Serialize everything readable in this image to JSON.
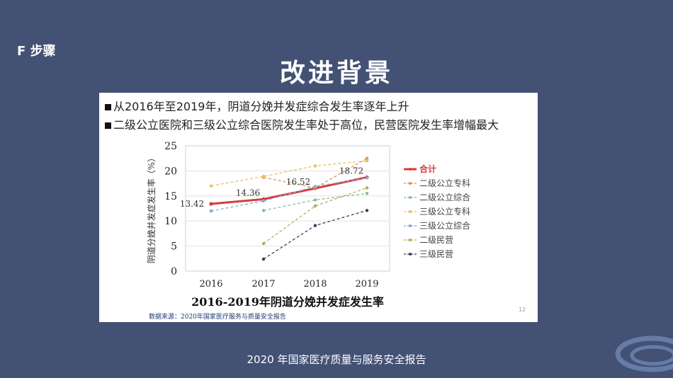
{
  "header": {
    "step": "F 步骤",
    "title": "改进背景"
  },
  "bullets": [
    "从2016年至2019年，阴道分娩并发症综合发生率逐年上升",
    "二级公立医院和三级公立综合医院发生率处于高位，民营医院发生率增幅最大"
  ],
  "chart_data": {
    "type": "line",
    "title": "2016-2019年阴道分娩并发症发生率",
    "xlabel": "",
    "ylabel": "阴道分娩并发症发生率（%）",
    "categories": [
      "2016",
      "2017",
      "2018",
      "2019"
    ],
    "ylim": [
      0,
      25
    ],
    "yticks": [
      0,
      5,
      10,
      15,
      20,
      25
    ],
    "grid": true,
    "legend_position": "right",
    "series": [
      {
        "name": "合计",
        "values": [
          13.42,
          14.36,
          16.52,
          18.72
        ],
        "color": "#d43f3a",
        "labels": [
          "13.42",
          "14.36",
          "16.52",
          "18.72"
        ]
      },
      {
        "name": "二级公立专科",
        "values": [
          null,
          18.7,
          16.6,
          22.5
        ],
        "color": "#d9955a"
      },
      {
        "name": "二级公立综合",
        "values": [
          null,
          12.1,
          14.2,
          15.5
        ],
        "color": "#7fbf9a"
      },
      {
        "name": "三级公立专科",
        "values": [
          17.0,
          18.9,
          21.0,
          22.0
        ],
        "color": "#e6c25a"
      },
      {
        "name": "三级公立综合",
        "values": [
          12.0,
          14.0,
          16.9,
          18.6
        ],
        "color": "#8aa8d8"
      },
      {
        "name": "二级民营",
        "values": [
          null,
          5.5,
          13.0,
          16.6
        ],
        "color": "#a8b35a"
      },
      {
        "name": "三级民营",
        "values": [
          null,
          2.4,
          9.1,
          12.1
        ],
        "color": "#3b3f5c"
      }
    ]
  },
  "source_note": "数据来源：2020年国家医疗服务与质量安全报告",
  "page_number": "12",
  "footer": "2020 年国家医疗质量与服务安全报告"
}
